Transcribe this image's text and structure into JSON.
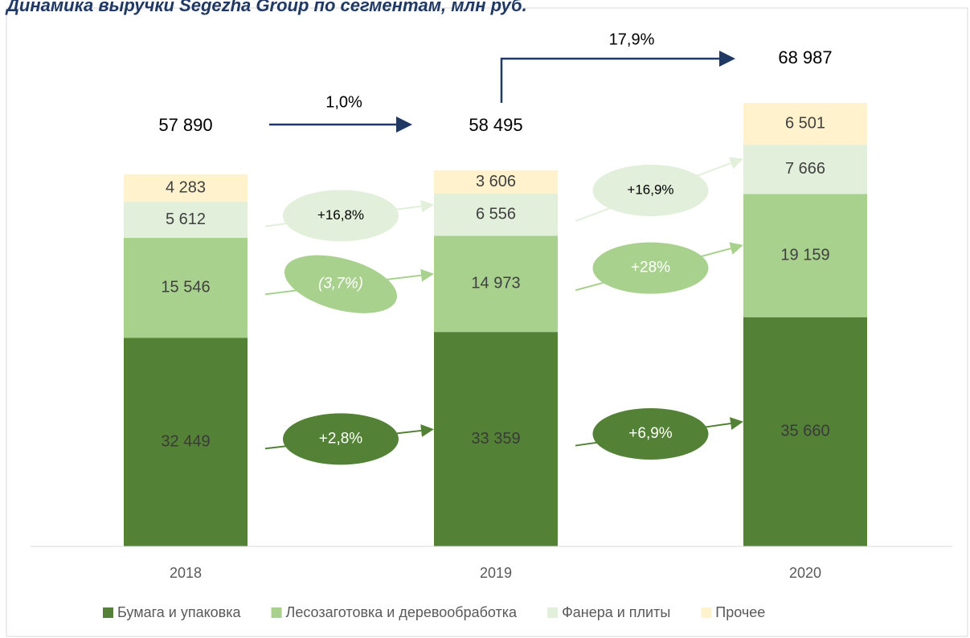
{
  "chart_data": {
    "type": "stacked_bar",
    "title": "Динамика выручки Segezha Group по сегментам, млн руб.",
    "categories": [
      "2018",
      "2019",
      "2020"
    ],
    "series": [
      {
        "name": "Бумага и упаковка",
        "color": "#538135",
        "values": [
          32449,
          33359,
          35660
        ],
        "value_labels": [
          "32 449",
          "33 359",
          "35 660"
        ]
      },
      {
        "name": "Лесозаготовка и деревообработка",
        "color": "#a9d18e",
        "values": [
          15546,
          14973,
          19159
        ],
        "value_labels": [
          "15 546",
          "14 973",
          "19 159"
        ]
      },
      {
        "name": "Фанера и плиты",
        "color": "#e2efda",
        "values": [
          5612,
          6556,
          7666
        ],
        "value_labels": [
          "5 612",
          "6 556",
          "7 666"
        ]
      },
      {
        "name": "Прочее",
        "color": "#fff2cc",
        "values": [
          4283,
          3606,
          6501
        ],
        "value_labels": [
          "4 283",
          "3 606",
          "6 501"
        ]
      }
    ],
    "totals": {
      "values": [
        57890,
        58495,
        68987
      ],
      "value_labels": [
        "57 890",
        "58 495",
        "68 987"
      ]
    },
    "total_growth": [
      "1,0%",
      "17,9%"
    ],
    "segment_growth": [
      [
        "+2,8%",
        "(3,7%)",
        "+16,8%"
      ],
      [
        "+6,9%",
        "+28%",
        "+16,9%"
      ]
    ],
    "ylim": [
      0,
      80000
    ]
  }
}
